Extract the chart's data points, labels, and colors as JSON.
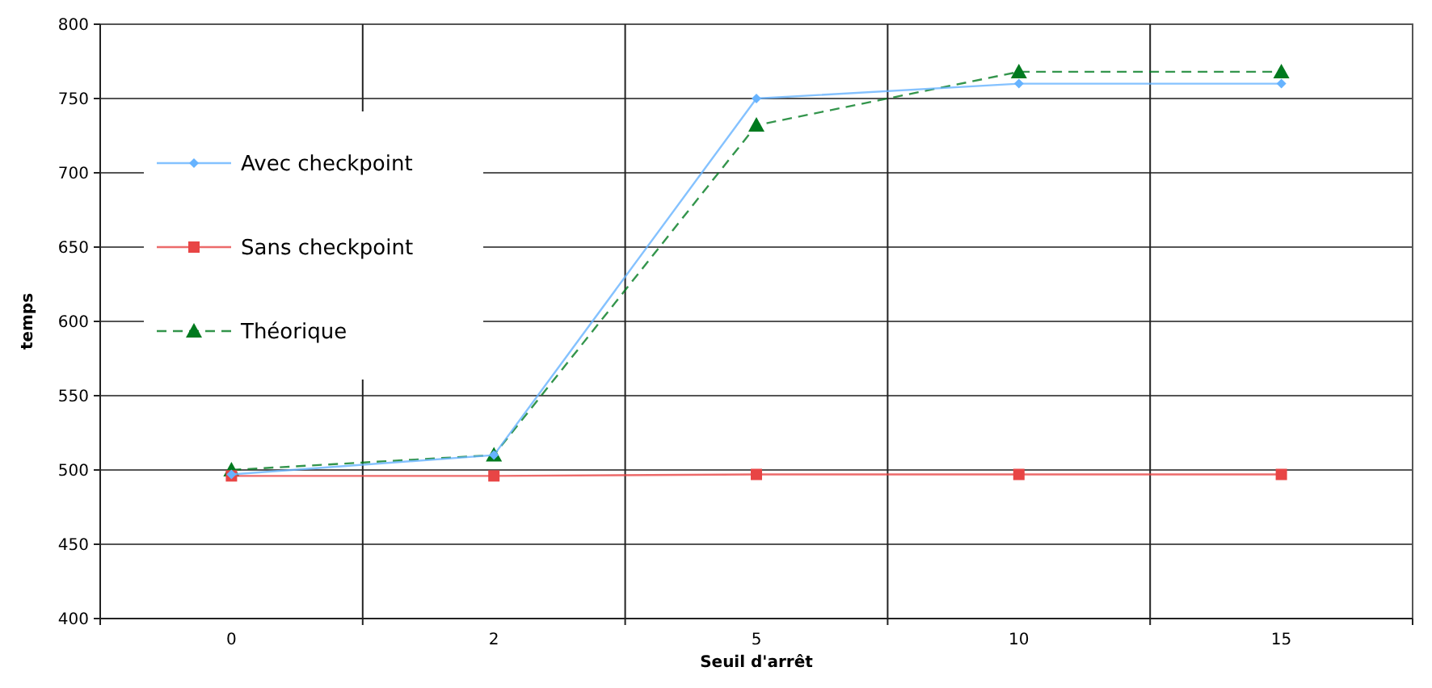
{
  "chart_data": {
    "type": "line",
    "xlabel": "Seuil d'arrêt",
    "ylabel": "temps",
    "categories": [
      "0",
      "2",
      "5",
      "10",
      "15"
    ],
    "series": [
      {
        "name": "Avec checkpoint",
        "color": "#66b3ff",
        "marker": "diamond",
        "line_style": "solid",
        "values": [
          497,
          510,
          750,
          760,
          760
        ]
      },
      {
        "name": "Sans checkpoint",
        "color": "#e84545",
        "marker": "square",
        "line_style": "solid",
        "values": [
          496,
          496,
          497,
          497,
          497
        ]
      },
      {
        "name": "Théorique",
        "color": "#007a1f",
        "marker": "triangle",
        "line_style": "dashed",
        "values": [
          500,
          510,
          732,
          768,
          768
        ]
      }
    ],
    "ylim": [
      400,
      800
    ],
    "yticks": [
      400,
      450,
      500,
      550,
      600,
      650,
      700,
      750,
      800
    ],
    "grid": true,
    "legend": "left"
  }
}
